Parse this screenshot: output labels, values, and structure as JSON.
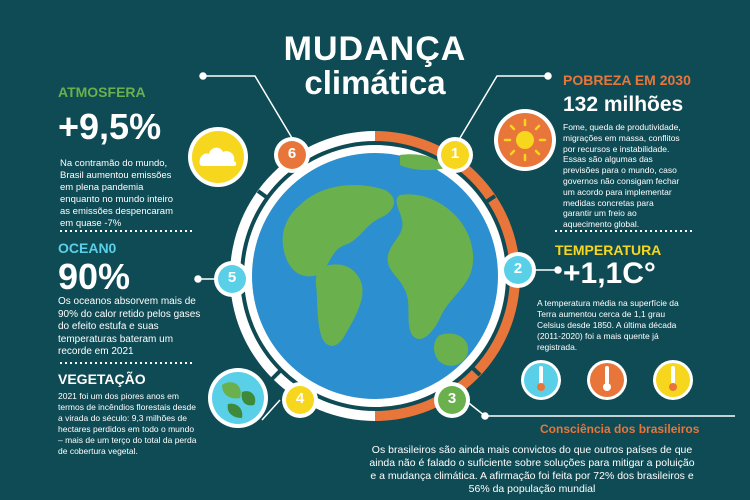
{
  "title": {
    "line1": "MUDANÇA",
    "line2": "climática"
  },
  "sections": {
    "atmosfera": {
      "heading": "ATMOSFERA",
      "value": "+9,5%",
      "text": [
        "Na contramão do mundo,",
        "Brasil aumentou emissões",
        "em plena pandemia",
        "enquanto no mundo inteiro",
        "as emissões despencaram",
        "em quase -7%"
      ],
      "number": "6"
    },
    "oceano": {
      "heading": "OCEAN0",
      "value": "90%",
      "text": [
        "Os oceanos absorvem mais de",
        "90% do calor retido pelos gases",
        "do efeito estufa e suas",
        "temperaturas bateram um",
        "recorde em 2021"
      ],
      "number": "5"
    },
    "vegetacao": {
      "heading": "VEGETAÇÃO",
      "text": [
        "2021 foi um dos piores anos em",
        "termos de incêndios florestais desde",
        "a virada do século: 9,3 milhões de",
        "hectares perdidos em todo o mundo",
        "– mais de um terço do total da perda",
        "de cobertura vegetal."
      ],
      "number": "4"
    },
    "pobreza": {
      "heading": "POBREZA EM 2030",
      "value": "132 milhões",
      "text": [
        "Fome, queda de produtividade,",
        "migrações em massa, conflitos",
        "por recursos e instabilidade.",
        "Essas são algumas das",
        "previsões para o mundo, caso",
        "governos não consigam fechar",
        "um acordo para implementar",
        "medidas concretas para",
        "garantir um freio ao",
        "aquecimento global."
      ],
      "number": "1"
    },
    "temperatura": {
      "heading": "TEMPERATURA",
      "value": "+1,1C°",
      "text": [
        "A temperatura média na superfície da",
        "Terra aumentou cerca de 1,1 grau",
        "Celsius desde 1850.  A última década",
        "(2011-2020) foi a mais quente já",
        "registrada."
      ],
      "number": "2"
    },
    "consciencia": {
      "heading": "Consciência dos brasileiros",
      "text": [
        "Os brasileiros são ainda mais convictos do que outros países de que",
        "ainda não é falado o suficiente sobre soluções para mitigar a poluição",
        "e a mudança climática. A afirmação foi feita por 72% dos brasileiros e",
        "56% da população mundial"
      ],
      "number": "3"
    }
  },
  "colors": {
    "background": "#0f4b55",
    "green": "#6ab04c",
    "cyan": "#5ad0e8",
    "orange": "#e8763a",
    "yellow": "#f7d61e",
    "ocean": "#2c8fd0"
  }
}
